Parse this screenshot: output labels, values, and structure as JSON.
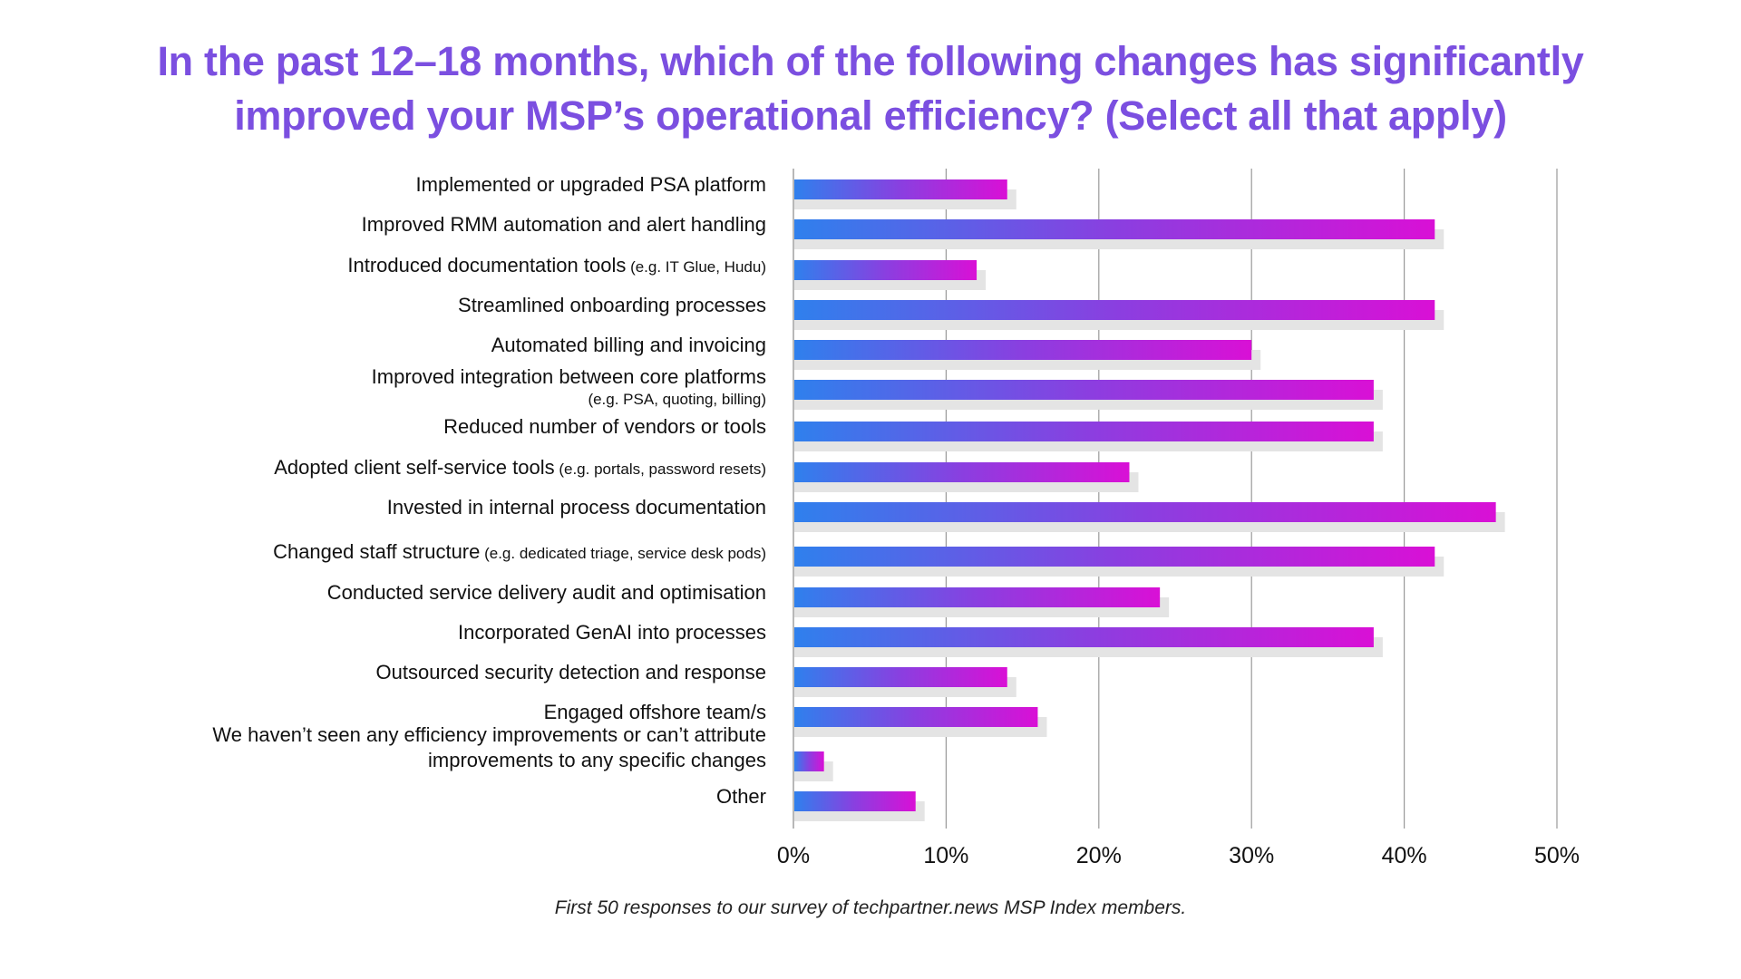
{
  "title": {
    "line1": "In the past 12–18 months, which of the following changes has significantly",
    "line2": "improved your MSP’s operational efficiency? (Select all that apply)"
  },
  "footnote": "First 50 responses to our survey of techpartner.news MSP Index members.",
  "colors": {
    "title": "#7b4fe0",
    "bar_gradient_start": "#2f80ed",
    "bar_gradient_mid": "#8a3fe0",
    "bar_gradient_end": "#d910d6",
    "bar_shadow": "#e4e4e4",
    "gridline": "#999999",
    "text": "#111111"
  },
  "chart_data": {
    "type": "bar",
    "orientation": "horizontal",
    "title": "In the past 12–18 months, which of the following changes has significantly improved your MSP’s operational efficiency? (Select all that apply)",
    "xlabel": "",
    "ylabel": "",
    "xlim": [
      0,
      50
    ],
    "x_unit": "%",
    "grid": true,
    "legend": "none",
    "ticks": [
      "0%",
      "10%",
      "20%",
      "30%",
      "40%",
      "50%"
    ],
    "tick_values": [
      0,
      10,
      20,
      30,
      40,
      50
    ],
    "categories": [
      {
        "main": "Implemented or upgraded PSA platform",
        "note": "",
        "note_newline": false
      },
      {
        "main": "Improved RMM automation and alert handling",
        "note": "",
        "note_newline": false
      },
      {
        "main": "Introduced documentation tools",
        "note": "(e.g. IT Glue, Hudu)",
        "note_newline": false
      },
      {
        "main": "Streamlined onboarding processes",
        "note": "",
        "note_newline": false
      },
      {
        "main": "Automated billing and invoicing",
        "note": "",
        "note_newline": false
      },
      {
        "main": "Improved integration between core platforms",
        "note": "(e.g. PSA, quoting, billing)",
        "note_newline": true
      },
      {
        "main": "Reduced number of vendors or tools",
        "note": "",
        "note_newline": false
      },
      {
        "main": "Adopted client self-service tools",
        "note": "(e.g. portals, password resets)",
        "note_newline": false
      },
      {
        "main": "Invested in internal process documentation",
        "note": "",
        "note_newline": false
      },
      {
        "main": "Changed staff structure",
        "note": "(e.g. dedicated triage, service desk pods)",
        "note_newline": false
      },
      {
        "main": "Conducted service delivery audit and optimisation",
        "note": "",
        "note_newline": false
      },
      {
        "main": "Incorporated GenAI into processes",
        "note": "",
        "note_newline": false
      },
      {
        "main": "Outsourced security detection and response",
        "note": "",
        "note_newline": false
      },
      {
        "main": "Engaged offshore team/s",
        "note": "",
        "note_newline": false
      },
      {
        "main": "We haven’t seen any efficiency improvements or can’t attribute",
        "main2": "improvements to any specific changes",
        "note": "",
        "note_newline": false
      },
      {
        "main": "Other",
        "note": "",
        "note_newline": false
      }
    ],
    "values": [
      14,
      42,
      12,
      42,
      30,
      38,
      38,
      22,
      46,
      42,
      24,
      38,
      14,
      16,
      2,
      8
    ]
  }
}
